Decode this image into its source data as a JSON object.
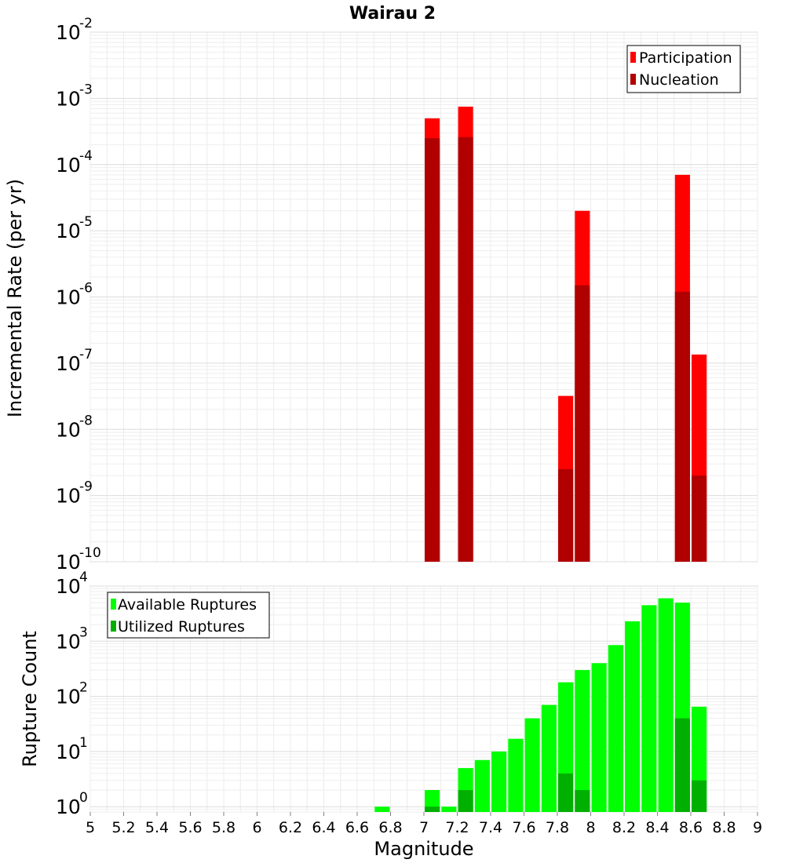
{
  "chart_data": [
    {
      "type": "bar",
      "title": "Wairau 2",
      "ylabel": "Incremental Rate (per yr)",
      "xlabel": "",
      "xlim": [
        5,
        9
      ],
      "ylim": [
        1e-10,
        0.01
      ],
      "yscale": "log",
      "y_tick_exponents": [
        "-2",
        "-3",
        "-4",
        "-5",
        "-6",
        "-7",
        "-8",
        "-9",
        "-10"
      ],
      "y_tick_base": "10",
      "grid": true,
      "legend_position": "top-right",
      "legend": [
        "Participation",
        "Nucleation"
      ],
      "bar_width": 0.09,
      "series": [
        {
          "name": "Participation",
          "color": "#ff0000",
          "x": [
            7.05,
            7.25,
            7.85,
            7.95,
            8.55,
            8.65
          ],
          "values": [
            0.0005,
            0.00075,
            3.2e-08,
            2e-05,
            7e-05,
            1.35e-07
          ]
        },
        {
          "name": "Nucleation",
          "color": "#b00000",
          "x": [
            7.05,
            7.25,
            7.85,
            7.95,
            8.55,
            8.65
          ],
          "values": [
            0.00025,
            0.00026,
            2.5e-09,
            1.5e-06,
            1.2e-06,
            2e-09
          ]
        }
      ]
    },
    {
      "type": "bar",
      "title": "",
      "ylabel": "Rupture Count",
      "xlabel": "Magnitude",
      "xlim": [
        5,
        9
      ],
      "ylim": [
        0.8,
        10000
      ],
      "yscale": "log",
      "y_tick_exponents": [
        "4",
        "3",
        "2",
        "1",
        "0"
      ],
      "y_tick_base": "10",
      "x_ticks": [
        "5",
        "5.2",
        "5.4",
        "5.6",
        "5.8",
        "6",
        "6.2",
        "6.4",
        "6.6",
        "6.8",
        "7",
        "7.2",
        "7.4",
        "7.6",
        "7.8",
        "8",
        "8.2",
        "8.4",
        "8.6",
        "8.8",
        "9"
      ],
      "grid": true,
      "legend_position": "top-left",
      "legend": [
        "Available Ruptures",
        "Utilized Ruptures"
      ],
      "bar_width": 0.09,
      "series": [
        {
          "name": "Available Ruptures",
          "color": "#00ff00",
          "x": [
            6.75,
            7.05,
            7.15,
            7.25,
            7.35,
            7.45,
            7.55,
            7.65,
            7.75,
            7.85,
            7.95,
            8.05,
            8.15,
            8.25,
            8.35,
            8.45,
            8.55,
            8.65
          ],
          "values": [
            1,
            2,
            1,
            5,
            7,
            10,
            17,
            40,
            70,
            180,
            300,
            400,
            850,
            2300,
            4500,
            6000,
            5000,
            65
          ]
        },
        {
          "name": "Utilized Ruptures",
          "color": "#00b000",
          "x": [
            7.05,
            7.25,
            7.85,
            7.95,
            8.55,
            8.65
          ],
          "values": [
            1,
            2,
            4,
            2,
            40,
            3
          ]
        }
      ]
    }
  ]
}
